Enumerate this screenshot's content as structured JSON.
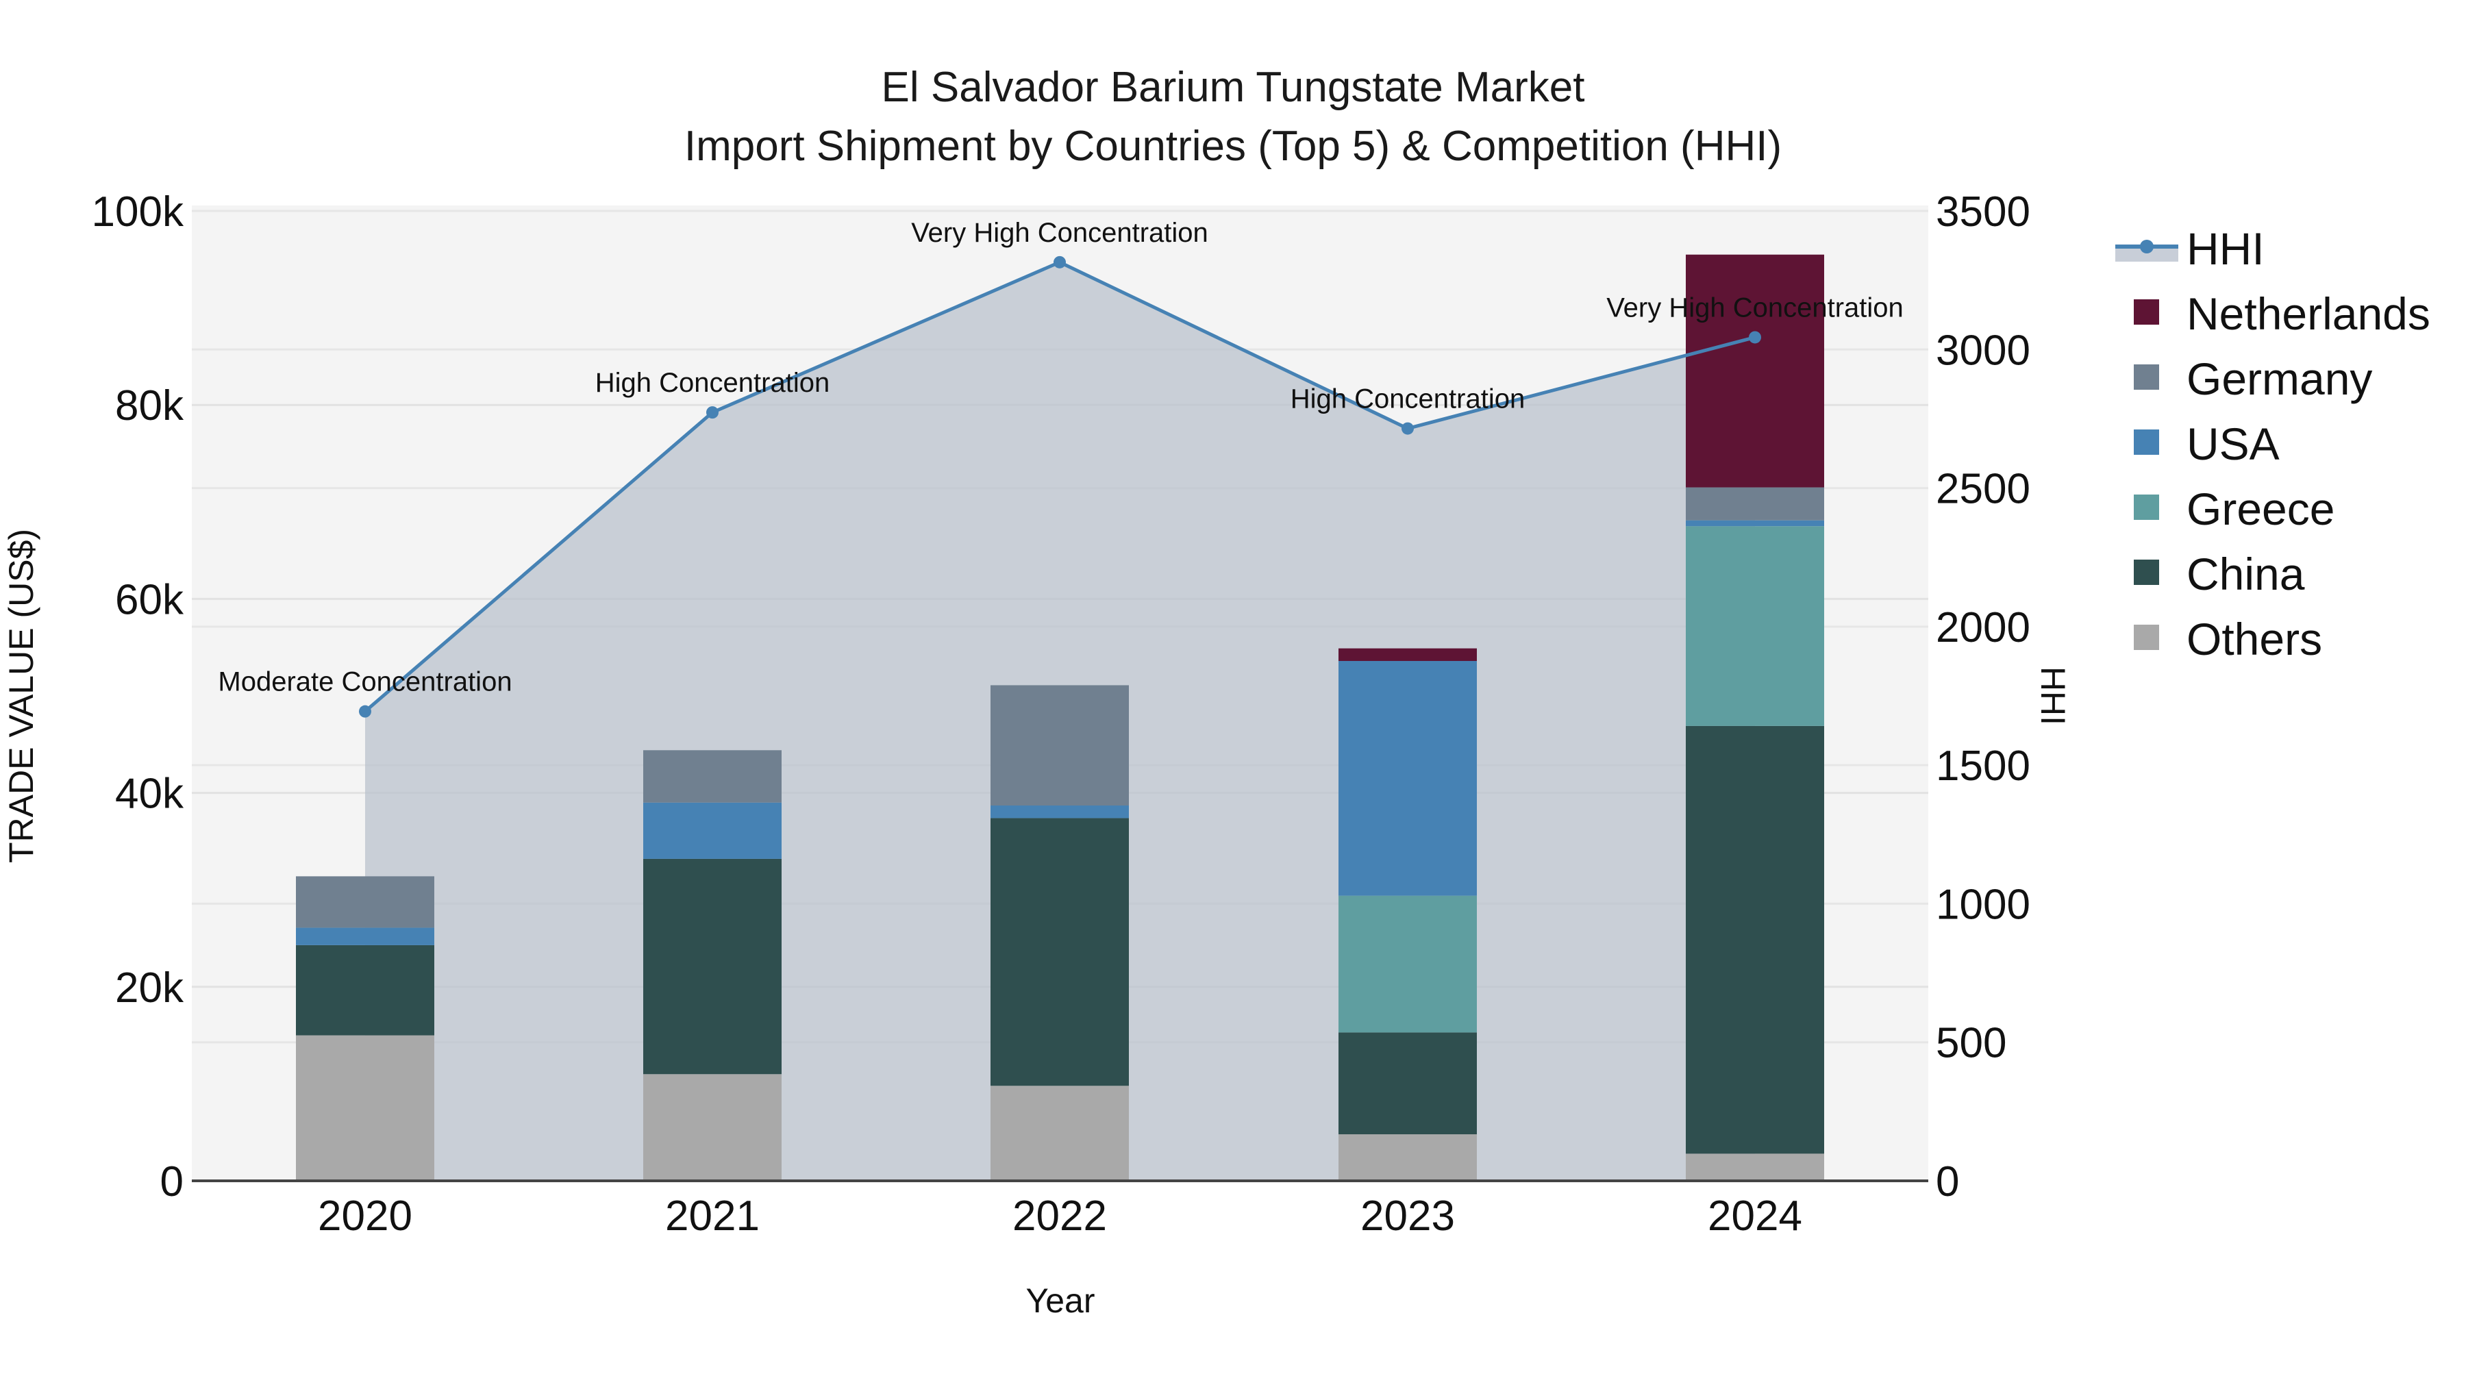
{
  "chart_data": {
    "type": "bar",
    "title": "El Salvador Barium Tungstate Market",
    "subtitle": "Import Shipment by Countries (Top 5) & Competition (HHI)",
    "xlabel": "Year",
    "ylabel": "TRADE VALUE (US$)",
    "y2label": "HHI",
    "categories": [
      "2020",
      "2021",
      "2022",
      "2023",
      "2024"
    ],
    "ylim": [
      0,
      100000
    ],
    "y2lim": [
      0,
      3500
    ],
    "yticks": [
      "0",
      "20k",
      "40k",
      "60k",
      "80k",
      "100k"
    ],
    "y2ticks": [
      "0",
      "500",
      "1000",
      "1500",
      "2000",
      "2500",
      "3000",
      "3500"
    ],
    "stacked": true,
    "series": [
      {
        "name": "Others",
        "color": "#A9A9A9",
        "values": [
          15000,
          11000,
          9800,
          4800,
          2800
        ]
      },
      {
        "name": "China",
        "color": "#2F4F4F",
        "values": [
          9300,
          22200,
          27600,
          10500,
          44100
        ]
      },
      {
        "name": "Greece",
        "color": "#5F9EA0",
        "values": [
          0,
          0,
          0,
          14100,
          20600
        ]
      },
      {
        "name": "USA",
        "color": "#4682B4",
        "values": [
          1800,
          5800,
          1300,
          24200,
          600
        ]
      },
      {
        "name": "Germany",
        "color": "#708090",
        "values": [
          5300,
          5400,
          12400,
          0,
          3400
        ]
      },
      {
        "name": "Netherlands",
        "color": "#5E1434",
        "values": [
          0,
          0,
          0,
          1300,
          24000
        ]
      }
    ],
    "hhi": {
      "name": "HHI",
      "color": "#4682B4",
      "values": [
        1694,
        2773,
        3315,
        2715,
        3044
      ],
      "labels": [
        "Moderate Concentration",
        "High Concentration",
        "Very High Concentration",
        "High Concentration",
        "Very High Concentration"
      ]
    },
    "legend": [
      "HHI",
      "Netherlands",
      "Germany",
      "USA",
      "Greece",
      "China",
      "Others"
    ],
    "legend_position": "right",
    "grid": true
  }
}
